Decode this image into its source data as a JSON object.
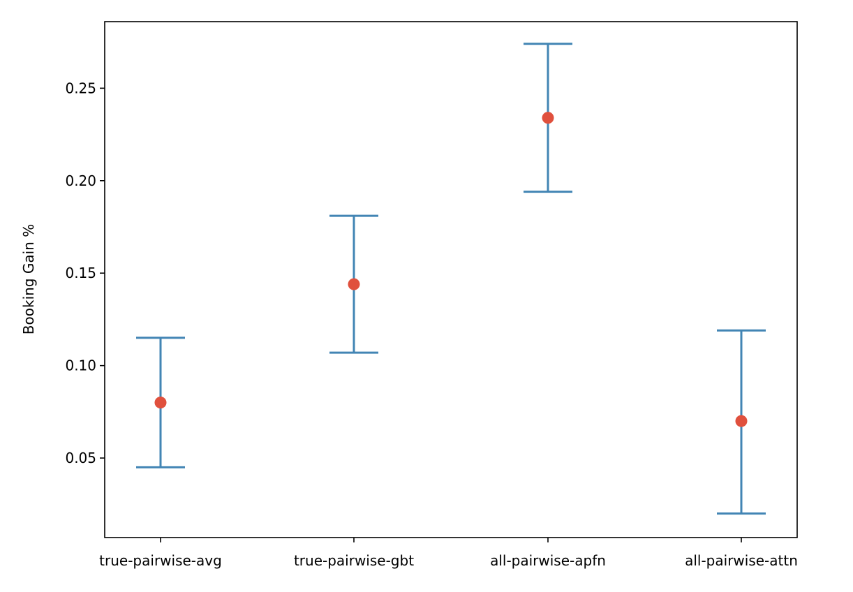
{
  "chart_data": {
    "type": "scatter",
    "subtype": "errorbar",
    "title": "",
    "xlabel": "",
    "ylabel": "Booking Gain %",
    "categories": [
      "true-pairwise-avg",
      "true-pairwise-gbt",
      "all-pairwise-apfn",
      "all-pairwise-attn"
    ],
    "series": [
      {
        "values": [
          0.08,
          0.144,
          0.234,
          0.07
        ],
        "lower": [
          0.045,
          0.107,
          0.194,
          0.02
        ],
        "upper": [
          0.115,
          0.181,
          0.274,
          0.119
        ]
      }
    ],
    "ylim": [
      0.007,
      0.286
    ],
    "yticks": [
      "0.05",
      "0.10",
      "0.15",
      "0.20",
      "0.25"
    ],
    "grid": false,
    "legend": "none",
    "colors": {
      "errorbar": "#4285b4",
      "point": "#e0503d",
      "axis": "#000000"
    }
  }
}
